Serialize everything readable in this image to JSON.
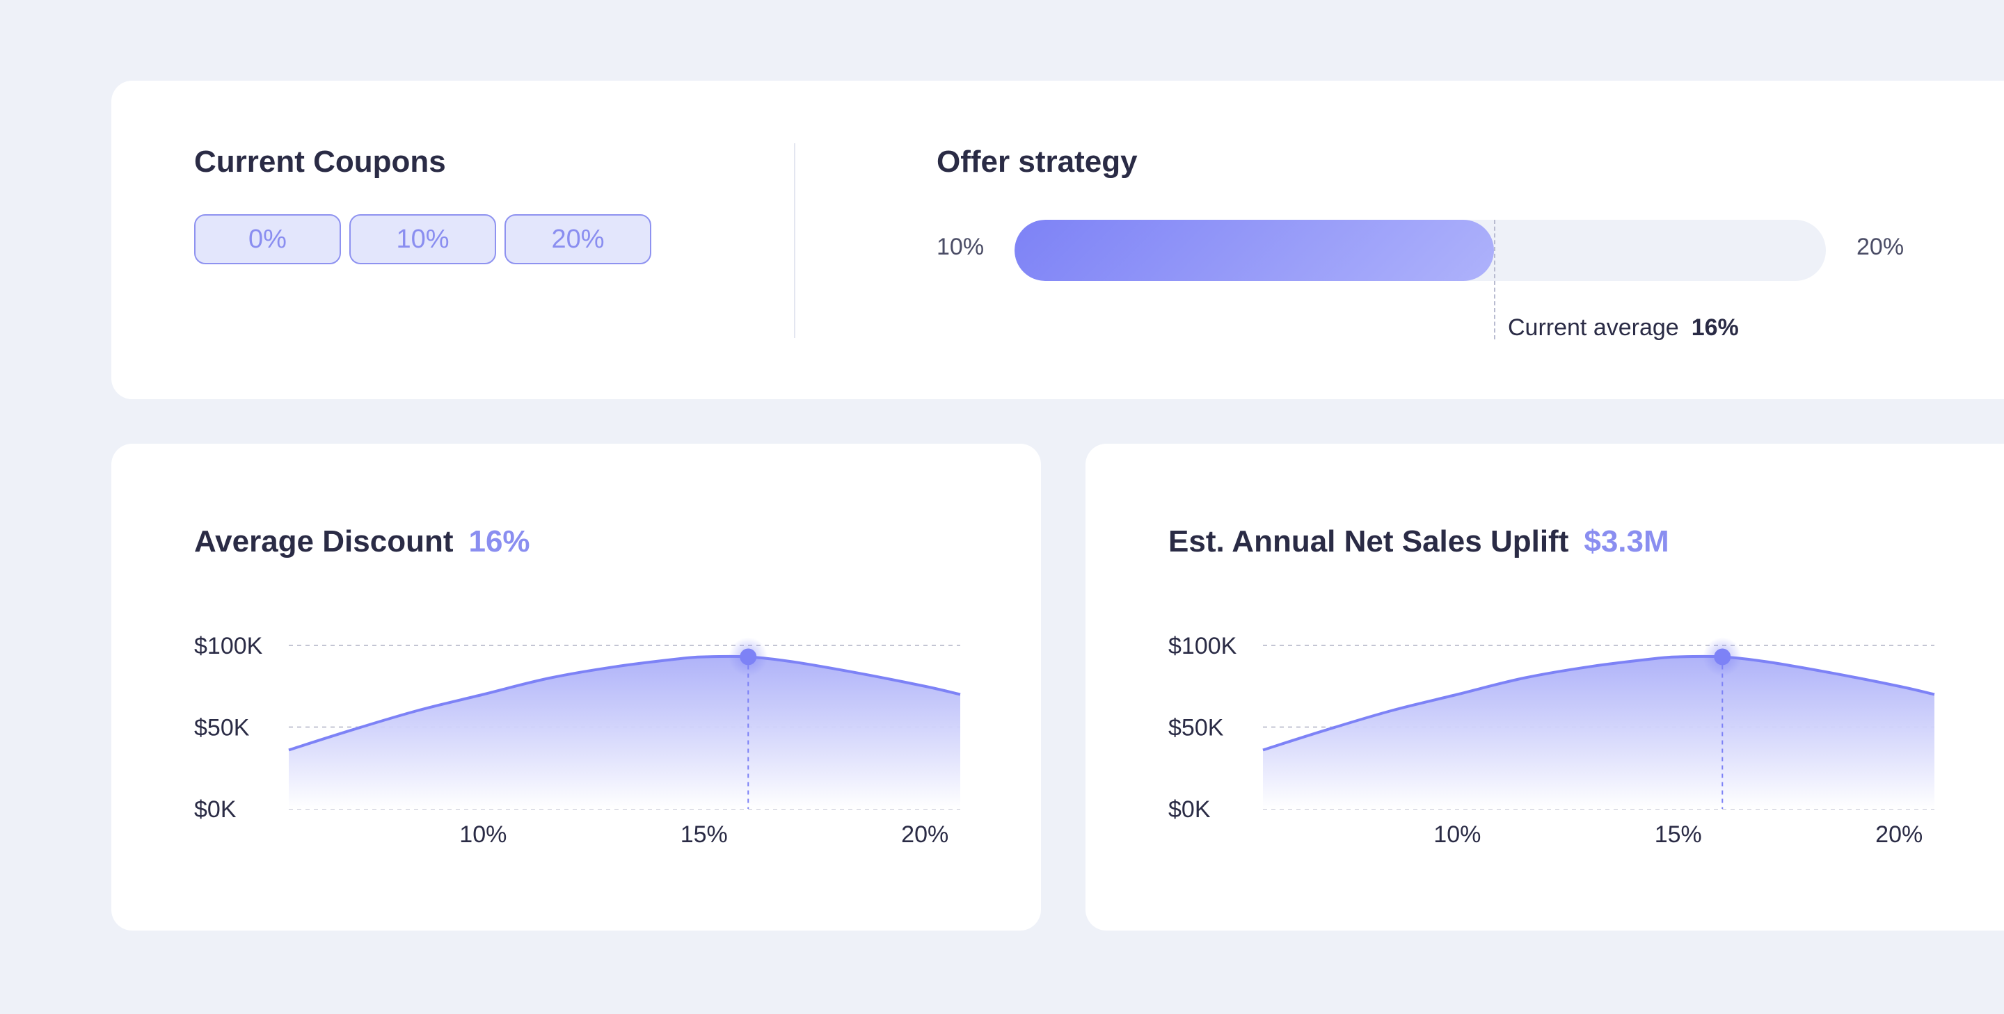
{
  "coupons": {
    "title": "Current Coupons",
    "chips": [
      "0%",
      "10%",
      "20%"
    ]
  },
  "offer_strategy": {
    "title": "Offer strategy",
    "min_label": "10%",
    "max_label": "20%",
    "min": 10,
    "max": 20,
    "current": 16,
    "current_label": "Current average",
    "current_value": "16%"
  },
  "colors": {
    "accent": "#8A8EF0",
    "line": "#7D82F6",
    "text": "#2A2B45",
    "background": "#EEF1F8"
  },
  "charts": {
    "left": {
      "title": "Average Discount",
      "value": "16%"
    },
    "right": {
      "title": "Est. Annual Net Sales Uplift",
      "value": "$3.3M"
    }
  },
  "chart_data": [
    {
      "type": "area",
      "title": "Average Discount",
      "xlabel": "",
      "ylabel": "",
      "xlim": [
        5.6,
        20.8
      ],
      "ylim": [
        0,
        100
      ],
      "x_ticks": [
        10,
        15,
        20
      ],
      "x_tick_labels": [
        "10%",
        "15%",
        "20%"
      ],
      "y_ticks": [
        0,
        50,
        100
      ],
      "y_tick_labels": [
        "$0K",
        "$50K",
        "$100K"
      ],
      "grid": true,
      "x": [
        5.6,
        7,
        8.5,
        10,
        11.5,
        13,
        14.5,
        15,
        16,
        17,
        18.5,
        20,
        20.8
      ],
      "y": [
        36,
        48,
        60,
        70,
        80,
        87,
        92,
        93,
        93,
        90,
        83,
        75,
        70
      ],
      "highlight": {
        "x": 16,
        "y": 93
      }
    },
    {
      "type": "area",
      "title": "Est. Annual Net Sales Uplift",
      "xlabel": "",
      "ylabel": "",
      "xlim": [
        5.6,
        20.8
      ],
      "ylim": [
        0,
        100
      ],
      "x_ticks": [
        10,
        15,
        20
      ],
      "x_tick_labels": [
        "10%",
        "15%",
        "20%"
      ],
      "y_ticks": [
        0,
        50,
        100
      ],
      "y_tick_labels": [
        "$0K",
        "$50K",
        "$100K"
      ],
      "grid": true,
      "x": [
        5.6,
        7,
        8.5,
        10,
        11.5,
        13,
        14.5,
        15,
        16,
        17,
        18.5,
        20,
        20.8
      ],
      "y": [
        36,
        48,
        60,
        70,
        80,
        87,
        92,
        93,
        93,
        90,
        83,
        75,
        70
      ],
      "highlight": {
        "x": 16,
        "y": 93
      }
    }
  ]
}
